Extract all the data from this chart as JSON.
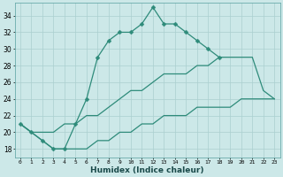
{
  "xlabel": "Humidex (Indice chaleur)",
  "bg_color": "#cce8e8",
  "line_color": "#2e8b7a",
  "grid_color": "#aacfcf",
  "xlim": [
    -0.5,
    23.5
  ],
  "ylim": [
    17,
    35.5
  ],
  "xticks": [
    0,
    1,
    2,
    3,
    4,
    5,
    6,
    7,
    8,
    9,
    10,
    11,
    12,
    13,
    14,
    15,
    16,
    17,
    18,
    19,
    20,
    21,
    22,
    23
  ],
  "yticks": [
    18,
    20,
    22,
    24,
    26,
    28,
    30,
    32,
    34
  ],
  "series": [
    {
      "x": [
        0,
        1,
        2,
        3,
        4,
        5,
        6,
        7,
        8,
        9,
        10,
        11,
        12,
        13,
        14,
        15,
        16,
        17,
        18
      ],
      "y": [
        21,
        20,
        19,
        18,
        18,
        21,
        24,
        29,
        31,
        32,
        32,
        33,
        35,
        33,
        33,
        32,
        31,
        30,
        29
      ],
      "marker": "D",
      "markersize": 2.5,
      "lw": 0.9
    },
    {
      "x": [
        0,
        1,
        2,
        3,
        4,
        5,
        6,
        7,
        8,
        9,
        10,
        11,
        12,
        13,
        14,
        15,
        16,
        17,
        18,
        19,
        20,
        21,
        22,
        23
      ],
      "y": [
        21,
        20,
        20,
        20,
        21,
        21,
        22,
        22,
        23,
        24,
        25,
        25,
        26,
        27,
        27,
        27,
        28,
        28,
        29,
        29,
        29,
        29,
        25,
        24
      ],
      "marker": null,
      "markersize": 0,
      "lw": 0.9
    },
    {
      "x": [
        0,
        1,
        2,
        3,
        4,
        5,
        6,
        7,
        8,
        9,
        10,
        11,
        12,
        13,
        14,
        15,
        16,
        17,
        18,
        19,
        20,
        21,
        22,
        23
      ],
      "y": [
        21,
        20,
        19,
        18,
        18,
        18,
        18,
        19,
        19,
        20,
        20,
        21,
        21,
        22,
        22,
        22,
        23,
        23,
        23,
        23,
        24,
        24,
        24,
        24
      ],
      "marker": null,
      "markersize": 0,
      "lw": 0.9
    }
  ]
}
